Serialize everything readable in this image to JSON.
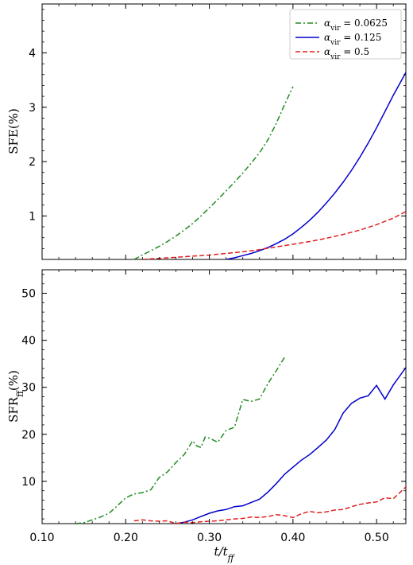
{
  "chart_data": [
    {
      "type": "line",
      "panel": "top",
      "ylabel": "SFE(%)",
      "xlim": [
        0.1,
        0.535
      ],
      "ylim": [
        0.2,
        4.9
      ],
      "y_ticks": [
        1,
        2,
        3,
        4
      ],
      "y_tick_labels": [
        "1",
        "2",
        "3",
        "4"
      ],
      "grid": false,
      "legend_position": "top-right",
      "series": [
        {
          "name": "α_vir = 0.0625",
          "color": "#228b22",
          "style": "dashdot",
          "x": [
            0.21,
            0.22,
            0.23,
            0.24,
            0.25,
            0.26,
            0.27,
            0.28,
            0.29,
            0.3,
            0.31,
            0.32,
            0.33,
            0.34,
            0.35,
            0.36,
            0.37,
            0.38,
            0.39,
            0.4
          ],
          "y": [
            0.2,
            0.28,
            0.36,
            0.44,
            0.53,
            0.63,
            0.74,
            0.86,
            1.0,
            1.15,
            1.3,
            1.46,
            1.62,
            1.79,
            1.97,
            2.16,
            2.4,
            2.7,
            3.05,
            3.38
          ]
        },
        {
          "name": "α_vir = 0.125",
          "color": "#0000cc",
          "style": "solid",
          "x": [
            0.32,
            0.33,
            0.34,
            0.35,
            0.36,
            0.37,
            0.38,
            0.39,
            0.4,
            0.41,
            0.42,
            0.43,
            0.44,
            0.45,
            0.46,
            0.47,
            0.48,
            0.49,
            0.5,
            0.51,
            0.52,
            0.535
          ],
          "y": [
            0.2,
            0.23,
            0.27,
            0.31,
            0.36,
            0.42,
            0.49,
            0.57,
            0.67,
            0.79,
            0.92,
            1.07,
            1.24,
            1.42,
            1.62,
            1.84,
            2.08,
            2.34,
            2.62,
            2.92,
            3.22,
            3.64
          ]
        },
        {
          "name": "α_vir = 0.5",
          "color": "#e02020",
          "style": "dashed",
          "x": [
            0.22,
            0.25,
            0.28,
            0.3,
            0.32,
            0.34,
            0.36,
            0.38,
            0.4,
            0.42,
            0.44,
            0.46,
            0.48,
            0.5,
            0.52,
            0.535
          ],
          "y": [
            0.2,
            0.23,
            0.26,
            0.28,
            0.31,
            0.34,
            0.38,
            0.43,
            0.48,
            0.53,
            0.59,
            0.66,
            0.74,
            0.84,
            0.96,
            1.08
          ]
        }
      ],
      "legend": [
        {
          "label": "α",
          "sub": "vir",
          "suffix": " = 0.0625"
        },
        {
          "label": "α",
          "sub": "vir",
          "suffix": " = 0.125"
        },
        {
          "label": "α",
          "sub": "vir",
          "suffix": " = 0.5"
        }
      ]
    },
    {
      "type": "line",
      "panel": "bottom",
      "ylabel": "SFR",
      "ylabel_sub": "ff",
      "ylabel_suffix": "(%)",
      "xlabel": "t/t",
      "xlabel_sub": "ff",
      "xlim": [
        0.1,
        0.535
      ],
      "ylim": [
        1,
        55
      ],
      "x_ticks": [
        0.1,
        0.2,
        0.3,
        0.4,
        0.5
      ],
      "x_tick_labels": [
        "0.10",
        "0.20",
        "0.30",
        "0.40",
        "0.50"
      ],
      "y_ticks": [
        10,
        20,
        30,
        40,
        50
      ],
      "y_tick_labels": [
        "10",
        "20",
        "30",
        "40",
        "50"
      ],
      "grid": false,
      "series": [
        {
          "name": "α_vir = 0.0625",
          "color": "#228b22",
          "style": "dashdot",
          "x": [
            0.14,
            0.15,
            0.16,
            0.17,
            0.18,
            0.19,
            0.2,
            0.21,
            0.22,
            0.23,
            0.235,
            0.24,
            0.25,
            0.26,
            0.27,
            0.28,
            0.285,
            0.29,
            0.295,
            0.3,
            0.31,
            0.32,
            0.33,
            0.34,
            0.35,
            0.36,
            0.37,
            0.38,
            0.39
          ],
          "y": [
            1.0,
            1.2,
            1.8,
            2.4,
            3.2,
            4.8,
            6.5,
            7.3,
            7.6,
            8.2,
            9.5,
            10.8,
            12.0,
            14.0,
            15.7,
            18.6,
            17.5,
            17.2,
            19.4,
            19.2,
            18.3,
            20.8,
            21.5,
            27.4,
            27.0,
            27.5,
            30.8,
            33.5,
            36.4
          ]
        },
        {
          "name": "α_vir = 0.125",
          "color": "#0000cc",
          "style": "solid",
          "x": [
            0.26,
            0.27,
            0.28,
            0.29,
            0.3,
            0.31,
            0.32,
            0.33,
            0.34,
            0.35,
            0.36,
            0.37,
            0.38,
            0.39,
            0.4,
            0.41,
            0.42,
            0.43,
            0.44,
            0.45,
            0.46,
            0.47,
            0.48,
            0.49,
            0.5,
            0.51,
            0.52,
            0.535
          ],
          "y": [
            1.0,
            1.3,
            1.8,
            2.5,
            3.2,
            3.7,
            4.0,
            4.6,
            4.8,
            5.5,
            6.2,
            7.7,
            9.5,
            11.5,
            13.0,
            14.5,
            15.7,
            17.2,
            18.8,
            21.0,
            24.5,
            26.6,
            27.7,
            28.2,
            30.4,
            27.5,
            30.5,
            34.2
          ]
        },
        {
          "name": "α_vir = 0.5",
          "color": "#e02020",
          "style": "dashed",
          "x": [
            0.21,
            0.22,
            0.23,
            0.24,
            0.25,
            0.26,
            0.27,
            0.28,
            0.29,
            0.3,
            0.31,
            0.32,
            0.33,
            0.34,
            0.35,
            0.36,
            0.37,
            0.38,
            0.39,
            0.4,
            0.41,
            0.42,
            0.43,
            0.44,
            0.45,
            0.46,
            0.47,
            0.48,
            0.49,
            0.5,
            0.51,
            0.52,
            0.535
          ],
          "y": [
            1.6,
            1.8,
            1.6,
            1.5,
            1.6,
            1.0,
            1.3,
            1.2,
            1.4,
            1.5,
            1.6,
            1.8,
            2.0,
            2.1,
            2.4,
            2.3,
            2.5,
            2.9,
            2.7,
            2.3,
            3.1,
            3.6,
            3.3,
            3.5,
            3.9,
            4.0,
            4.6,
            5.1,
            5.4,
            5.6,
            6.5,
            6.3,
            8.8
          ]
        }
      ]
    }
  ]
}
